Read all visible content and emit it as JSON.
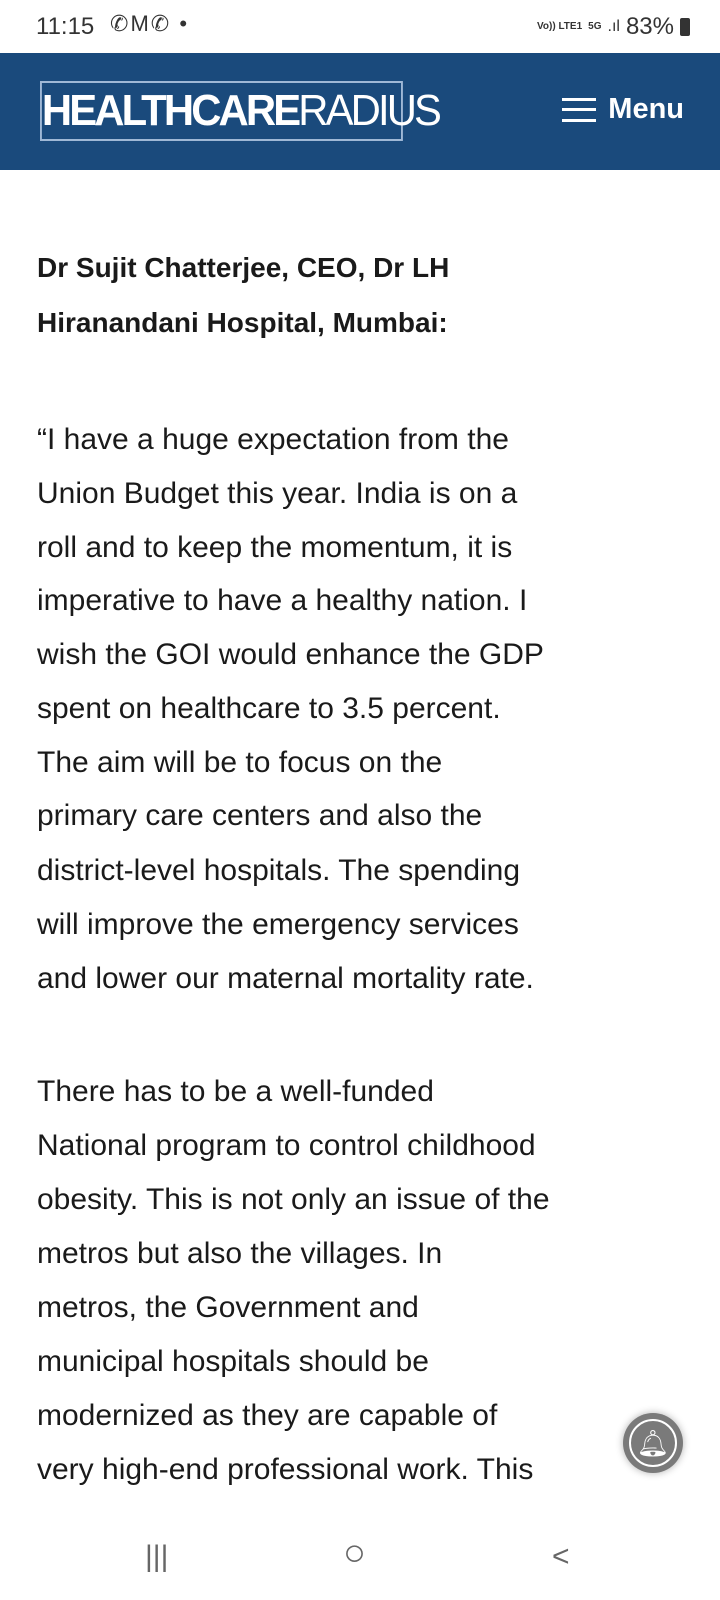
{
  "status_bar": {
    "time": "11:15",
    "notification_icons": [
      "whatsapp-icon",
      "gmail-icon",
      "whatsapp-icon"
    ],
    "network": "Vo)) LTE1",
    "network_type": "5G",
    "battery": "83%"
  },
  "header": {
    "logo": {
      "bold": "HEALTHCARE",
      "light": "RADIUS"
    },
    "menu_label": "Menu",
    "bg_color": "#1a4a7c"
  },
  "article": {
    "heading_lines": [
      "Dr Sujit Chatterjee, CEO, Dr LH",
      "Hiranandani Hospital, Mumbai:"
    ],
    "paragraph1_lines": [
      "“I have a huge expectation from the",
      "Union Budget this year. India is on a",
      "roll and to keep the momentum, it is",
      "imperative to have a healthy nation. I",
      "wish the GOI would enhance the GDP",
      "spent on healthcare to 3.5 percent.",
      "The aim will be to focus on the",
      "primary care centers and also the",
      "district-level hospitals. The spending",
      "will improve the emergency services",
      "and lower our maternal mortality rate."
    ],
    "paragraph2_lines": [
      "There has to be a well-funded",
      "National program to control childhood",
      "obesity. This is not only an issue of the",
      "metros but also the villages. In",
      "metros, the Government and",
      "municipal hospitals should be",
      "modernized as they are capable of",
      "very high-end professional work. This"
    ]
  },
  "nav_bar": {
    "recents": "|||",
    "home": "○",
    "back": "<"
  }
}
